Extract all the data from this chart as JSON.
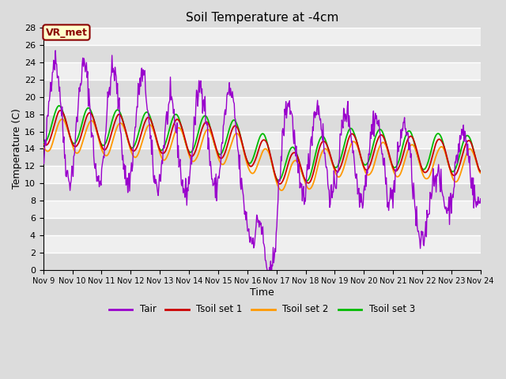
{
  "title": "Soil Temperature at -4cm",
  "xlabel": "Time",
  "ylabel": "Temperature (C)",
  "ylim": [
    0,
    28
  ],
  "yticks": [
    0,
    2,
    4,
    6,
    8,
    10,
    12,
    14,
    16,
    18,
    20,
    22,
    24,
    26,
    28
  ],
  "bg_color": "#dcdcdc",
  "grid_color": "#ffffff",
  "annotation_text": "VR_met",
  "annotation_bg": "#ffffcc",
  "annotation_border": "#8b0000",
  "colors": {
    "Tair": "#9900cc",
    "Tsoil1": "#cc0000",
    "Tsoil2": "#ff9900",
    "Tsoil3": "#00bb00"
  },
  "legend_labels": [
    "Tair",
    "Tsoil set 1",
    "Tsoil set 2",
    "Tsoil set 3"
  ],
  "n_points": 720,
  "xtick_labels": [
    "Nov 9",
    "Nov 10",
    "Nov 11",
    "Nov 12",
    "Nov 13",
    "Nov 14",
    "Nov 15",
    "Nov 16",
    "Nov 17",
    "Nov 18",
    "Nov 19",
    "Nov 20",
    "Nov 21",
    "Nov 22",
    "Nov 23",
    "Nov 24"
  ]
}
